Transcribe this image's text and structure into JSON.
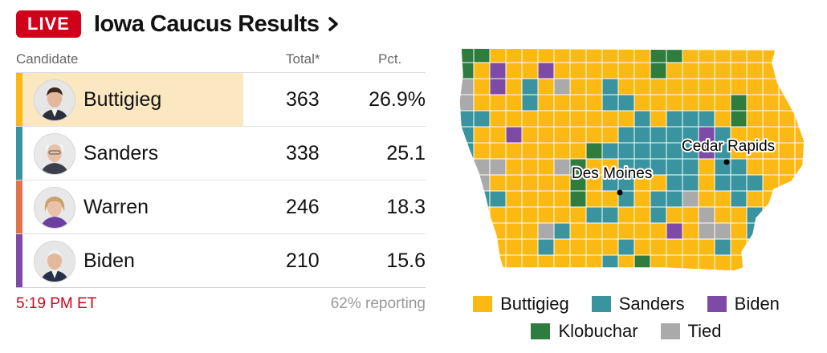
{
  "header": {
    "live_label": "LIVE",
    "title": "Iowa Caucus Results"
  },
  "table": {
    "col_candidate": "Candidate",
    "col_total": "Total*",
    "col_pct": "Pct.",
    "rows": [
      {
        "name": "Buttigieg",
        "total": "363",
        "pct": "26.9%",
        "color": "#fdb913",
        "leader": true
      },
      {
        "name": "Sanders",
        "total": "338",
        "pct": "25.1",
        "color": "#39949f",
        "leader": false
      },
      {
        "name": "Warren",
        "total": "246",
        "pct": "18.3",
        "color": "#e0744a",
        "leader": false
      },
      {
        "name": "Biden",
        "total": "210",
        "pct": "15.6",
        "color": "#7d4aa6",
        "leader": false
      }
    ]
  },
  "footer": {
    "time": "5:19 PM ET",
    "reporting": "62% reporting"
  },
  "map": {
    "cities": [
      "Des Moines",
      "Cedar Rapids"
    ],
    "colors": {
      "Buttigieg": "#fdb913",
      "Sanders": "#39949f",
      "Biden": "#7d4aa6",
      "Klobuchar": "#2f7d3e",
      "Tied": "#aaaaaa"
    }
  },
  "legend": {
    "items": [
      {
        "label": "Buttigieg",
        "color": "#fdb913"
      },
      {
        "label": "Sanders",
        "color": "#39949f"
      },
      {
        "label": "Biden",
        "color": "#7d4aa6"
      },
      {
        "label": "Klobuchar",
        "color": "#2f7d3e"
      },
      {
        "label": "Tied",
        "color": "#aaaaaa"
      }
    ]
  }
}
